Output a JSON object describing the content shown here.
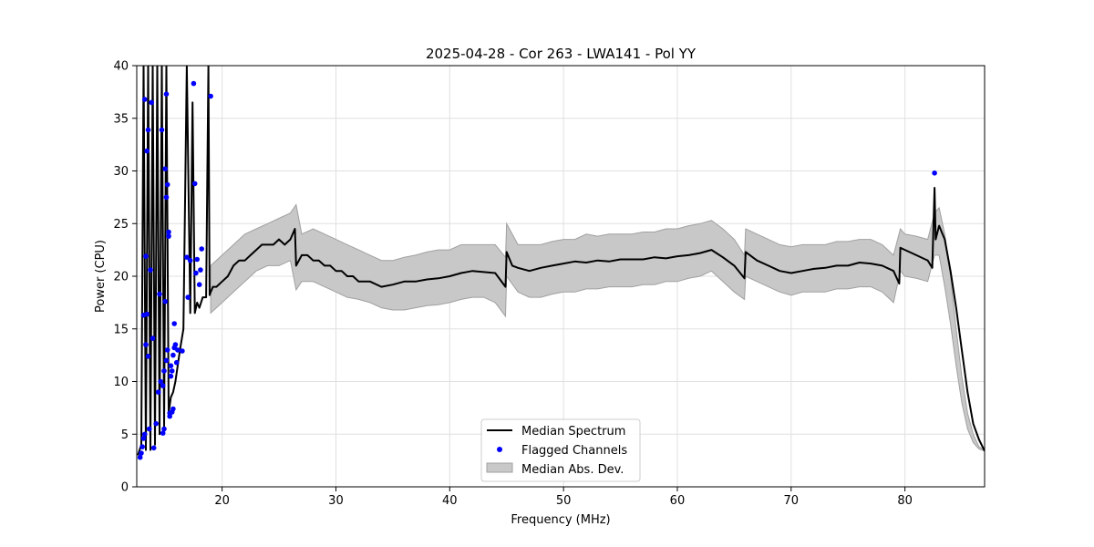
{
  "chart_data": {
    "type": "line",
    "title": "2025-04-28 - Cor 263 - LWA141 - Pol YY",
    "xlabel": "Frequency (MHz)",
    "ylabel": "Power (CPU)",
    "xlim": [
      12.5,
      87.0
    ],
    "ylim": [
      0,
      40
    ],
    "xticks": [
      20,
      30,
      40,
      50,
      60,
      70,
      80
    ],
    "yticks": [
      0,
      5,
      10,
      15,
      20,
      25,
      30,
      35,
      40
    ],
    "grid": true,
    "legend_position": "lower-center",
    "colors": {
      "median": "#000000",
      "flagged": "#0000ff",
      "mad_fill": "#c8c8c8",
      "mad_edge": "#a0a0a0",
      "grid": "#e0e0e0"
    },
    "series": [
      {
        "name": "Median Spectrum",
        "kind": "line",
        "x": [
          12.6,
          12.9,
          13.1,
          13.3,
          13.5,
          13.7,
          13.9,
          14.1,
          14.3,
          14.5,
          14.7,
          14.9,
          15.1,
          15.3,
          15.5,
          15.7,
          15.9,
          16.1,
          16.3,
          16.6,
          16.9,
          17.2,
          17.4,
          17.6,
          17.8,
          18.0,
          18.3,
          18.6,
          18.8,
          18.9,
          19.0,
          19.2,
          19.5,
          20.0,
          20.5,
          21.0,
          21.5,
          22.0,
          22.5,
          23.0,
          23.5,
          24.0,
          24.5,
          25.0,
          25.5,
          26.0,
          26.4,
          26.5,
          27.0,
          27.5,
          28.0,
          28.5,
          29.0,
          29.5,
          30.0,
          30.5,
          31.0,
          31.5,
          32.0,
          33.0,
          34.0,
          35.0,
          36.0,
          37.0,
          38.0,
          39.0,
          40.0,
          41.0,
          42.0,
          43.0,
          44.0,
          44.9,
          45.0,
          45.5,
          46.0,
          47.0,
          48.0,
          49.0,
          50.0,
          51.0,
          52.0,
          53.0,
          54.0,
          55.0,
          56.0,
          57.0,
          58.0,
          59.0,
          60.0,
          61.0,
          62.0,
          63.0,
          64.0,
          65.0,
          65.9,
          66.0,
          67.0,
          68.0,
          69.0,
          70.0,
          71.0,
          72.0,
          73.0,
          74.0,
          75.0,
          76.0,
          77.0,
          78.0,
          79.0,
          79.5,
          79.6,
          80.0,
          81.0,
          82.0,
          82.4,
          82.6,
          82.7,
          83.0,
          83.5,
          84.0,
          84.5,
          85.0,
          85.5,
          86.0,
          86.5,
          87.0
        ],
        "y": [
          3.0,
          4.0,
          40.0,
          3.5,
          40.0,
          3.5,
          40.0,
          4.0,
          40.0,
          5.0,
          40.0,
          5.5,
          40.0,
          7.0,
          8.5,
          9.0,
          10.0,
          11.5,
          13.0,
          15.0,
          40.0,
          16.5,
          36.5,
          16.5,
          17.5,
          17.0,
          18.0,
          18.0,
          40.0,
          18.2,
          18.5,
          19.0,
          19.0,
          19.5,
          20.0,
          21.0,
          21.5,
          21.5,
          22.0,
          22.5,
          23.0,
          23.0,
          23.0,
          23.5,
          23.0,
          23.5,
          24.5,
          21.0,
          22.0,
          22.0,
          21.5,
          21.5,
          21.0,
          21.0,
          20.5,
          20.5,
          20.0,
          20.0,
          19.5,
          19.5,
          19.0,
          19.2,
          19.5,
          19.5,
          19.7,
          19.8,
          20.0,
          20.3,
          20.5,
          20.4,
          20.3,
          19.0,
          22.3,
          21.0,
          20.8,
          20.5,
          20.8,
          21.0,
          21.2,
          21.4,
          21.3,
          21.5,
          21.4,
          21.6,
          21.6,
          21.6,
          21.8,
          21.7,
          21.9,
          22.0,
          22.2,
          22.5,
          21.8,
          21.0,
          19.8,
          22.3,
          21.5,
          21.0,
          20.5,
          20.3,
          20.5,
          20.7,
          20.8,
          21.0,
          21.0,
          21.3,
          21.2,
          21.0,
          20.5,
          19.3,
          22.7,
          22.5,
          22.0,
          21.5,
          20.8,
          28.4,
          23.5,
          24.8,
          23.5,
          20.5,
          17.0,
          13.0,
          9.0,
          6.0,
          4.5,
          3.4
        ]
      },
      {
        "name": "Flagged Channels",
        "kind": "scatter",
        "x": [
          12.8,
          12.9,
          13.0,
          13.1,
          13.1,
          13.2,
          13.2,
          13.3,
          13.3,
          13.4,
          13.4,
          13.5,
          13.5,
          13.6,
          13.7,
          13.8,
          13.9,
          14.0,
          14.2,
          14.4,
          14.5,
          14.6,
          14.7,
          14.8,
          14.8,
          14.9,
          14.9,
          15.0,
          15.0,
          15.1,
          15.1,
          15.1,
          15.2,
          15.2,
          15.3,
          15.3,
          15.4,
          15.4,
          15.5,
          15.5,
          15.6,
          15.6,
          15.7,
          15.7,
          15.8,
          15.8,
          15.9,
          16.0,
          16.1,
          16.5,
          16.9,
          17.0,
          17.2,
          17.5,
          17.6,
          17.7,
          17.8,
          18.0,
          18.1,
          18.2,
          19.0,
          82.6
        ],
        "y": [
          2.8,
          3.2,
          3.8,
          4.6,
          16.3,
          5.0,
          36.8,
          13.5,
          21.9,
          16.4,
          31.9,
          12.4,
          33.9,
          5.5,
          20.6,
          36.5,
          14.1,
          3.7,
          6.0,
          9.0,
          18.3,
          10.0,
          33.9,
          5.1,
          9.6,
          5.5,
          11.0,
          30.2,
          17.6,
          12.0,
          27.5,
          37.3,
          13.0,
          28.7,
          24.2,
          23.8,
          6.7,
          7.0,
          10.5,
          11.5,
          7.1,
          11.0,
          7.4,
          12.5,
          13.2,
          15.5,
          13.5,
          11.8,
          13.0,
          12.9,
          21.8,
          18.0,
          21.5,
          38.3,
          28.8,
          20.3,
          21.6,
          19.2,
          20.6,
          22.6,
          37.1,
          29.8
        ]
      },
      {
        "name": "Median Abs. Dev.",
        "kind": "band",
        "x": [
          19.0,
          20.0,
          21.0,
          22.0,
          23.0,
          24.0,
          25.0,
          26.0,
          26.5,
          27.0,
          28.0,
          29.0,
          30.0,
          31.0,
          32.0,
          33.0,
          34.0,
          35.0,
          36.0,
          37.0,
          38.0,
          39.0,
          40.0,
          41.0,
          42.0,
          43.0,
          44.0,
          44.9,
          45.0,
          46.0,
          47.0,
          48.0,
          49.0,
          50.0,
          51.0,
          52.0,
          53.0,
          54.0,
          55.0,
          56.0,
          57.0,
          58.0,
          59.0,
          60.0,
          61.0,
          62.0,
          63.0,
          64.0,
          65.0,
          65.9,
          66.0,
          67.0,
          68.0,
          69.0,
          70.0,
          71.0,
          72.0,
          73.0,
          74.0,
          75.0,
          76.0,
          77.0,
          78.0,
          79.0,
          79.6,
          80.0,
          81.0,
          82.0,
          82.6,
          83.0,
          83.5,
          84.0,
          84.5,
          85.0,
          85.5,
          86.0,
          86.5,
          87.0
        ],
        "lower": [
          16.5,
          17.5,
          18.5,
          19.5,
          20.5,
          21.0,
          21.0,
          21.5,
          18.7,
          19.5,
          19.5,
          19.0,
          18.5,
          18.0,
          17.8,
          17.5,
          17.0,
          16.8,
          16.8,
          17.0,
          17.2,
          17.3,
          17.5,
          17.8,
          18.0,
          18.0,
          17.5,
          16.2,
          20.0,
          18.5,
          18.0,
          18.0,
          18.3,
          18.5,
          18.5,
          18.8,
          18.8,
          19.0,
          19.0,
          19.0,
          19.2,
          19.2,
          19.5,
          19.5,
          19.8,
          20.0,
          20.5,
          19.5,
          18.5,
          17.8,
          20.0,
          19.5,
          19.0,
          18.5,
          18.2,
          18.5,
          18.5,
          18.5,
          18.8,
          18.8,
          19.0,
          19.0,
          18.5,
          17.5,
          20.5,
          20.0,
          19.8,
          19.5,
          22.0,
          22.0,
          19.0,
          15.5,
          11.5,
          8.0,
          5.5,
          4.2,
          3.6,
          3.4
        ],
        "upper": [
          21.0,
          22.0,
          23.0,
          24.0,
          24.5,
          25.0,
          25.5,
          26.0,
          26.8,
          24.0,
          24.5,
          24.0,
          23.5,
          23.0,
          22.5,
          22.0,
          21.5,
          21.5,
          21.8,
          22.0,
          22.3,
          22.5,
          22.5,
          23.0,
          23.0,
          23.0,
          23.0,
          21.8,
          25.0,
          23.0,
          23.0,
          23.0,
          23.3,
          23.5,
          23.5,
          24.0,
          23.8,
          24.0,
          24.0,
          24.0,
          24.2,
          24.2,
          24.5,
          24.5,
          24.8,
          25.0,
          25.3,
          24.5,
          23.5,
          22.0,
          24.5,
          24.0,
          23.5,
          23.0,
          22.8,
          23.0,
          23.0,
          23.0,
          23.3,
          23.3,
          23.5,
          23.5,
          23.0,
          22.0,
          24.5,
          24.0,
          23.8,
          23.5,
          26.0,
          26.5,
          24.0,
          20.0,
          15.0,
          10.5,
          7.0,
          5.0,
          3.8,
          3.5
        ]
      }
    ]
  }
}
